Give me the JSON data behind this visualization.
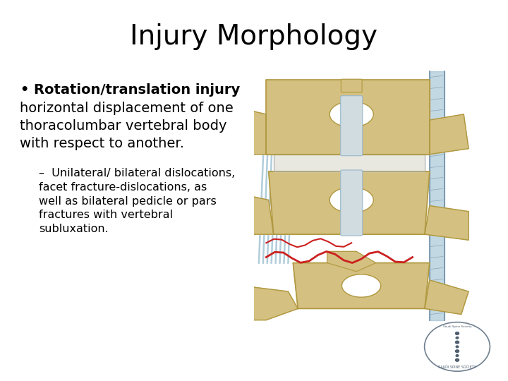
{
  "title": "Injury Morphology",
  "title_fontsize": 28,
  "title_fontfamily": "DejaVu Sans",
  "background_color": "#ffffff",
  "text_color": "#000000",
  "bullet_bold_text": "Rotation/translation injury",
  "bullet_fontsize": 14,
  "body_text": "horizontal displacement of one\nthoracolumbar vertebral body\nwith respect to another.",
  "body_fontsize": 14,
  "sub_bullet_prefix": "–",
  "sub_bullet_text": "Unilateral/ bilateral dislocations,\nfacet fracture-dislocations, as\nwell as bilateral pedicle or pars\nfractures with vertebral\nsubluxation.",
  "sub_bullet_fontsize": 11.5,
  "bone_color": "#d4c080",
  "bone_edge": "#b09840",
  "bone_shadow": "#c0aa60",
  "disc_color": "#d0dce0",
  "disc_color2": "#e8e8e0",
  "ligament_color": "#90b8cc",
  "ligament_edge": "#7090a8",
  "red_color": "#cc2020",
  "logo_color": "#708090"
}
